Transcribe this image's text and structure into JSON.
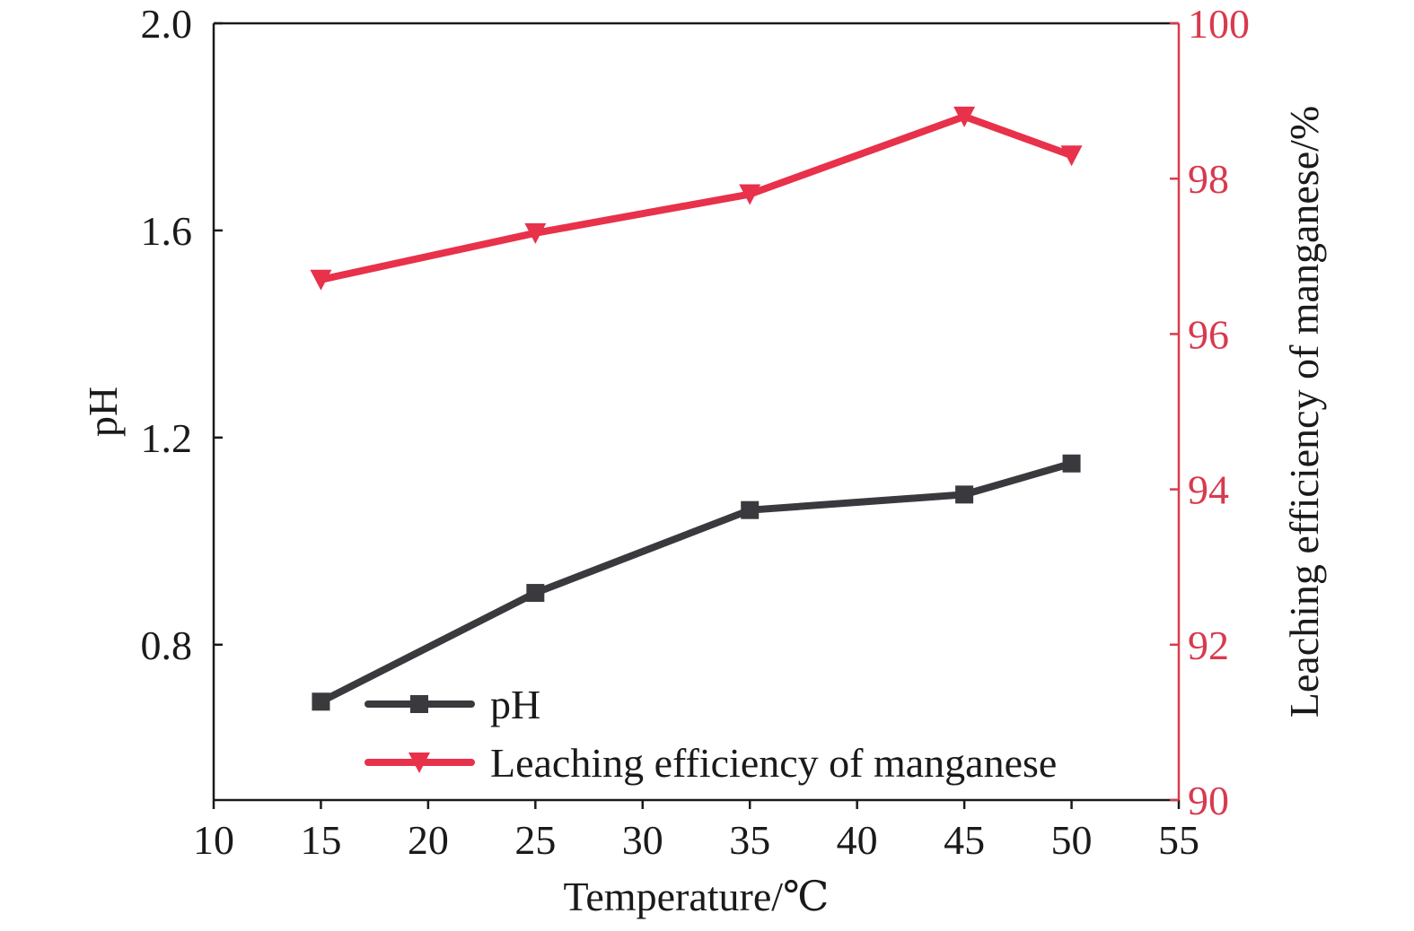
{
  "colors": {
    "ph_series": "#3a3a3e",
    "leaching_series": "#e8314a",
    "right_axis": "#d83a4e",
    "axis": "#1a1a1a"
  },
  "chart_data": {
    "type": "line",
    "xlabel": "Temperature/℃",
    "ylabel_left": "pH",
    "ylabel_right": "Leaching efficiency of manganese/%",
    "xlim": [
      10,
      55
    ],
    "ylim_left": [
      0.5,
      2.0
    ],
    "ylim_right": [
      90,
      100
    ],
    "x_ticks": [
      "10",
      "15",
      "20",
      "25",
      "30",
      "35",
      "40",
      "45",
      "50",
      "55"
    ],
    "y_left_ticks": [
      "0.8",
      "1.2",
      "1.6",
      "2.0"
    ],
    "y_right_ticks": [
      "90",
      "92",
      "94",
      "96",
      "98",
      "100"
    ],
    "grid": false,
    "legend_position": "bottom-left",
    "x": [
      15,
      25,
      35,
      45,
      50
    ],
    "series": [
      {
        "name": "pH",
        "axis": "left",
        "marker": "square",
        "values": [
          0.69,
          0.9,
          1.06,
          1.09,
          1.15
        ]
      },
      {
        "name": "Leaching efficiency of manganese",
        "axis": "right",
        "marker": "triangle-down",
        "values": [
          96.7,
          97.3,
          97.8,
          98.8,
          98.3
        ]
      }
    ]
  }
}
